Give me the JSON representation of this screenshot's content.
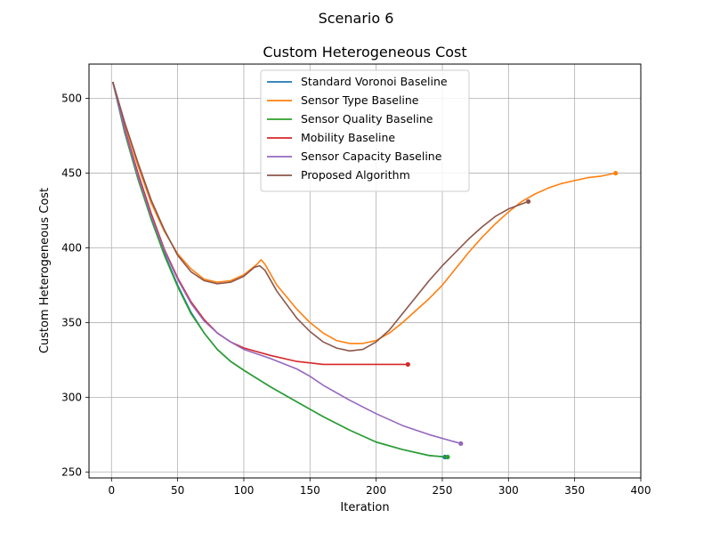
{
  "chart_data": {
    "type": "line",
    "suptitle": "Scenario 6",
    "title": "Custom Heterogeneous Cost",
    "xlabel": "Iteration",
    "ylabel": "Custom Heterogeneous Cost",
    "xlim": [
      -17,
      400
    ],
    "ylim": [
      246,
      523
    ],
    "xticks": [
      0,
      50,
      100,
      150,
      200,
      250,
      300,
      350,
      400
    ],
    "yticks": [
      250,
      300,
      350,
      400,
      450,
      500
    ],
    "grid": true,
    "legend_position": "upper-center",
    "series": [
      {
        "name": "Standard Voronoi Baseline",
        "color": "#1f77b4",
        "points": [
          [
            1,
            511
          ],
          [
            10,
            478
          ],
          [
            20,
            447
          ],
          [
            30,
            420
          ],
          [
            40,
            396
          ],
          [
            50,
            375
          ],
          [
            60,
            357
          ],
          [
            70,
            343
          ],
          [
            80,
            332
          ],
          [
            90,
            324
          ],
          [
            100,
            318
          ],
          [
            120,
            307
          ],
          [
            140,
            297
          ],
          [
            160,
            287
          ],
          [
            180,
            278
          ],
          [
            200,
            270
          ],
          [
            220,
            265
          ],
          [
            240,
            261
          ],
          [
            252,
            260
          ]
        ]
      },
      {
        "name": "Sensor Type Baseline",
        "color": "#ff7f0e",
        "points": [
          [
            1,
            511
          ],
          [
            10,
            483
          ],
          [
            20,
            455
          ],
          [
            30,
            430
          ],
          [
            40,
            411
          ],
          [
            50,
            396
          ],
          [
            60,
            386
          ],
          [
            70,
            379
          ],
          [
            80,
            377
          ],
          [
            90,
            378
          ],
          [
            100,
            382
          ],
          [
            110,
            389
          ],
          [
            113,
            392
          ],
          [
            116,
            389
          ],
          [
            125,
            375
          ],
          [
            140,
            359
          ],
          [
            150,
            350
          ],
          [
            160,
            343
          ],
          [
            170,
            338
          ],
          [
            180,
            336
          ],
          [
            190,
            336
          ],
          [
            200,
            338
          ],
          [
            210,
            343
          ],
          [
            220,
            350
          ],
          [
            230,
            358
          ],
          [
            240,
            366
          ],
          [
            250,
            375
          ],
          [
            260,
            386
          ],
          [
            270,
            397
          ],
          [
            280,
            407
          ],
          [
            290,
            416
          ],
          [
            300,
            424
          ],
          [
            310,
            431
          ],
          [
            320,
            436
          ],
          [
            330,
            440
          ],
          [
            340,
            443
          ],
          [
            350,
            445
          ],
          [
            360,
            447
          ],
          [
            370,
            448
          ],
          [
            381,
            450
          ]
        ]
      },
      {
        "name": "Sensor Quality Baseline",
        "color": "#2ca02c",
        "points": [
          [
            1,
            511
          ],
          [
            10,
            477
          ],
          [
            20,
            446
          ],
          [
            30,
            419
          ],
          [
            40,
            395
          ],
          [
            50,
            374
          ],
          [
            60,
            356
          ],
          [
            70,
            343
          ],
          [
            80,
            332
          ],
          [
            90,
            324
          ],
          [
            100,
            318
          ],
          [
            120,
            307
          ],
          [
            140,
            297
          ],
          [
            160,
            287
          ],
          [
            180,
            278
          ],
          [
            200,
            270
          ],
          [
            220,
            265
          ],
          [
            240,
            261
          ],
          [
            254,
            260
          ]
        ]
      },
      {
        "name": "Mobility Baseline",
        "color": "#d62728",
        "points": [
          [
            1,
            511
          ],
          [
            10,
            480
          ],
          [
            20,
            450
          ],
          [
            30,
            423
          ],
          [
            40,
            399
          ],
          [
            50,
            380
          ],
          [
            60,
            364
          ],
          [
            70,
            352
          ],
          [
            80,
            343
          ],
          [
            90,
            337
          ],
          [
            100,
            333
          ],
          [
            120,
            328
          ],
          [
            140,
            324
          ],
          [
            160,
            322
          ],
          [
            180,
            322
          ],
          [
            200,
            322
          ],
          [
            224,
            322
          ]
        ]
      },
      {
        "name": "Sensor Capacity Baseline",
        "color": "#9467bd",
        "points": [
          [
            1,
            511
          ],
          [
            10,
            479
          ],
          [
            20,
            448
          ],
          [
            30,
            421
          ],
          [
            40,
            398
          ],
          [
            50,
            379
          ],
          [
            60,
            363
          ],
          [
            70,
            351
          ],
          [
            80,
            343
          ],
          [
            90,
            337
          ],
          [
            100,
            332
          ],
          [
            120,
            326
          ],
          [
            140,
            319
          ],
          [
            150,
            314
          ],
          [
            160,
            308
          ],
          [
            180,
            298
          ],
          [
            200,
            289
          ],
          [
            220,
            281
          ],
          [
            240,
            275
          ],
          [
            264,
            269
          ]
        ]
      },
      {
        "name": "Proposed Algorithm",
        "color": "#8c564b",
        "points": [
          [
            1,
            511
          ],
          [
            10,
            484
          ],
          [
            20,
            457
          ],
          [
            30,
            432
          ],
          [
            40,
            412
          ],
          [
            50,
            395
          ],
          [
            60,
            384
          ],
          [
            70,
            378
          ],
          [
            80,
            376
          ],
          [
            90,
            377
          ],
          [
            100,
            381
          ],
          [
            108,
            387
          ],
          [
            112,
            388
          ],
          [
            116,
            385
          ],
          [
            125,
            371
          ],
          [
            140,
            353
          ],
          [
            150,
            344
          ],
          [
            160,
            337
          ],
          [
            170,
            333
          ],
          [
            180,
            331
          ],
          [
            190,
            332
          ],
          [
            200,
            337
          ],
          [
            210,
            345
          ],
          [
            220,
            356
          ],
          [
            230,
            367
          ],
          [
            240,
            378
          ],
          [
            250,
            388
          ],
          [
            260,
            397
          ],
          [
            270,
            406
          ],
          [
            280,
            414
          ],
          [
            290,
            421
          ],
          [
            300,
            426
          ],
          [
            315,
            431
          ]
        ]
      }
    ]
  }
}
